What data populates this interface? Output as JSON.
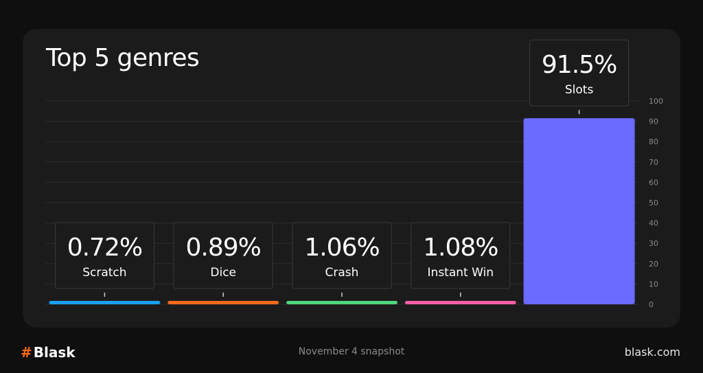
{
  "chart_data": {
    "type": "bar",
    "title": "Top 5 genres",
    "categories": [
      "Scratch",
      "Dice",
      "Crash",
      "Instant Win",
      "Slots"
    ],
    "values": [
      0.72,
      0.89,
      1.06,
      1.08,
      91.5
    ],
    "value_labels": [
      "0.72%",
      "0.89%",
      "1.06%",
      "1.08%",
      "91.5%"
    ],
    "colors": [
      "#1aa1f0",
      "#f26a1b",
      "#4fd67e",
      "#ff5fa8",
      "#6b6bff"
    ],
    "ylim": [
      0,
      100
    ],
    "yticks": [
      0,
      10,
      20,
      30,
      40,
      50,
      60,
      70,
      80,
      90,
      100
    ],
    "grid": true,
    "y_axis_side": "right"
  },
  "footer": {
    "logo_text": "Blask",
    "logo_symbol": "#",
    "snapshot": "November 4 snapshot",
    "site": "blask.com"
  }
}
